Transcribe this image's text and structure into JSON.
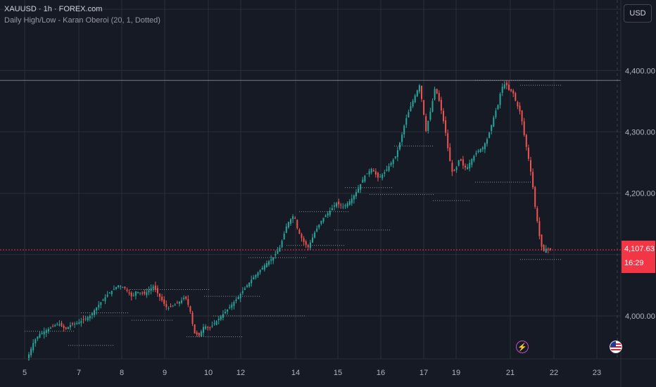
{
  "legend": {
    "symbol": "XAUUSD · 1h · FOREX.com",
    "indicator": "Daily High/Low - Karan Oberoi (20, 1, Dotted)"
  },
  "toolbar": {
    "currency_label": "USD"
  },
  "last_price": {
    "value": "4,107.63",
    "countdown": "16:29"
  },
  "colors": {
    "background": "#161a25",
    "up": "#26a69a",
    "down": "#ef5350",
    "grid": "#2a2e39",
    "last_price": "#f23645",
    "level_line": "#787b86"
  },
  "icons": {
    "event": "lightning-bolt-icon",
    "country": "us-flag-icon"
  },
  "chart_data": {
    "type": "candlestick",
    "y_ticks": [
      "4,000.00",
      "4,100.00",
      "4,200.00",
      "4,300.00",
      "4,400.00"
    ],
    "y_tick_values": [
      4000,
      4100,
      4200,
      4300,
      4400
    ],
    "ylim": [
      3930,
      4515
    ],
    "x_ticks": [
      "5",
      "7",
      "8",
      "9",
      "10",
      "12",
      "14",
      "15",
      "16",
      "17",
      "19",
      "21",
      "22",
      "23"
    ],
    "grid": true,
    "horizontal_level": 4384,
    "last_price": 4107.63,
    "path": [
      [
        0,
        3928
      ],
      [
        4,
        3940
      ],
      [
        10,
        3958
      ],
      [
        18,
        3970
      ],
      [
        30,
        3978
      ],
      [
        45,
        3988
      ],
      [
        55,
        3978
      ],
      [
        62,
        3985
      ],
      [
        75,
        3990
      ],
      [
        90,
        4000
      ],
      [
        100,
        4015
      ],
      [
        115,
        4035
      ],
      [
        130,
        4050
      ],
      [
        140,
        4045
      ],
      [
        150,
        4030
      ],
      [
        155,
        4040
      ],
      [
        168,
        4036
      ],
      [
        180,
        4048
      ],
      [
        195,
        4020
      ],
      [
        200,
        4012
      ],
      [
        210,
        4018
      ],
      [
        220,
        4025
      ],
      [
        225,
        4032
      ],
      [
        232,
        4010
      ],
      [
        238,
        3972
      ],
      [
        245,
        3968
      ],
      [
        252,
        3984
      ],
      [
        260,
        3980
      ],
      [
        270,
        3992
      ],
      [
        285,
        4010
      ],
      [
        300,
        4030
      ],
      [
        320,
        4060
      ],
      [
        340,
        4085
      ],
      [
        350,
        4095
      ],
      [
        360,
        4112
      ],
      [
        370,
        4150
      ],
      [
        380,
        4165
      ],
      [
        385,
        4140
      ],
      [
        390,
        4128
      ],
      [
        395,
        4118
      ],
      [
        400,
        4112
      ],
      [
        410,
        4138
      ],
      [
        420,
        4158
      ],
      [
        430,
        4170
      ],
      [
        440,
        4184
      ],
      [
        450,
        4178
      ],
      [
        460,
        4188
      ],
      [
        470,
        4205
      ],
      [
        480,
        4228
      ],
      [
        490,
        4240
      ],
      [
        500,
        4224
      ],
      [
        510,
        4236
      ],
      [
        518,
        4250
      ],
      [
        525,
        4262
      ],
      [
        532,
        4290
      ],
      [
        538,
        4318
      ],
      [
        545,
        4340
      ],
      [
        552,
        4360
      ],
      [
        558,
        4376
      ],
      [
        563,
        4340
      ],
      [
        567,
        4300
      ],
      [
        570,
        4316
      ],
      [
        575,
        4340
      ],
      [
        580,
        4372
      ],
      [
        585,
        4355
      ],
      [
        590,
        4330
      ],
      [
        595,
        4300
      ],
      [
        600,
        4260
      ],
      [
        605,
        4232
      ],
      [
        610,
        4240
      ],
      [
        615,
        4258
      ],
      [
        620,
        4245
      ],
      [
        625,
        4240
      ],
      [
        632,
        4255
      ],
      [
        640,
        4268
      ],
      [
        648,
        4275
      ],
      [
        655,
        4290
      ],
      [
        660,
        4310
      ],
      [
        665,
        4330
      ],
      [
        670,
        4345
      ],
      [
        674,
        4370
      ],
      [
        678,
        4378
      ],
      [
        682,
        4376
      ],
      [
        686,
        4366
      ],
      [
        690,
        4368
      ],
      [
        694,
        4352
      ],
      [
        698,
        4340
      ],
      [
        702,
        4330
      ],
      [
        706,
        4300
      ],
      [
        710,
        4275
      ],
      [
        714,
        4250
      ],
      [
        718,
        4222
      ],
      [
        722,
        4180
      ],
      [
        726,
        4150
      ],
      [
        730,
        4118
      ],
      [
        734,
        4105
      ],
      [
        738,
        4110
      ],
      [
        742,
        4108
      ]
    ],
    "daily_levels": [
      {
        "x": [
          0,
          72
        ],
        "y": 3975
      },
      {
        "x": [
          62,
          128
        ],
        "y": 3952
      },
      {
        "x": [
          80,
          148
        ],
        "y": 4005
      },
      {
        "x": [
          152,
          210
        ],
        "y": 3993
      },
      {
        "x": [
          150,
          262
        ],
        "y": 4043
      },
      {
        "x": [
          230,
          310
        ],
        "y": 3966
      },
      {
        "x": [
          255,
          335
        ],
        "y": 4032
      },
      {
        "x": [
          268,
          400
        ],
        "y": 4000
      },
      {
        "x": [
          318,
          400
        ],
        "y": 4095
      },
      {
        "x": [
          372,
          455
        ],
        "y": 4115
      },
      {
        "x": [
          390,
          460
        ],
        "y": 4170
      },
      {
        "x": [
          440,
          520
        ],
        "y": 4140
      },
      {
        "x": [
          455,
          522
        ],
        "y": 4209
      },
      {
        "x": [
          490,
          582
        ],
        "y": 4198
      },
      {
        "x": [
          525,
          582
        ],
        "y": 4277
      },
      {
        "x": [
          580,
          632
        ],
        "y": 4188
      },
      {
        "x": [
          640,
          722
        ],
        "y": 4384
      },
      {
        "x": [
          640,
          722
        ],
        "y": 4218
      },
      {
        "x": [
          704,
          762
        ],
        "y": 4376
      },
      {
        "x": [
          704,
          762
        ],
        "y": 4092
      }
    ]
  }
}
